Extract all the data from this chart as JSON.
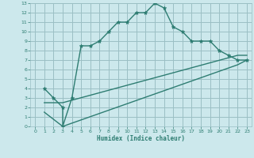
{
  "xlabel": "Humidex (Indice chaleur)",
  "bg_color": "#cce8ec",
  "grid_color": "#9bbfc4",
  "line_color": "#2e7d72",
  "xlim": [
    -0.5,
    23.5
  ],
  "ylim": [
    0,
    13
  ],
  "xticks": [
    0,
    1,
    2,
    3,
    4,
    5,
    6,
    7,
    8,
    9,
    10,
    11,
    12,
    13,
    14,
    15,
    16,
    17,
    18,
    19,
    20,
    21,
    22,
    23
  ],
  "yticks": [
    0,
    1,
    2,
    3,
    4,
    5,
    6,
    7,
    8,
    9,
    10,
    11,
    12,
    13
  ],
  "curve1_x": [
    1,
    2,
    3,
    3,
    4,
    5,
    6,
    7,
    8,
    9,
    10,
    11,
    12,
    13,
    14,
    15,
    16,
    17,
    18,
    19,
    20,
    21,
    22,
    23
  ],
  "curve1_y": [
    4,
    3,
    2,
    0,
    3,
    8.5,
    8.5,
    9,
    10,
    11,
    11,
    12,
    12,
    13,
    12.5,
    10.5,
    10,
    9,
    9,
    9,
    8,
    7.5,
    7,
    7
  ],
  "curve2_x": [
    1,
    3,
    22,
    23
  ],
  "curve2_y": [
    1.5,
    0,
    6.5,
    7
  ],
  "curve3_x": [
    1,
    3,
    22,
    23
  ],
  "curve3_y": [
    2.5,
    2.5,
    7.5,
    7.5
  ]
}
